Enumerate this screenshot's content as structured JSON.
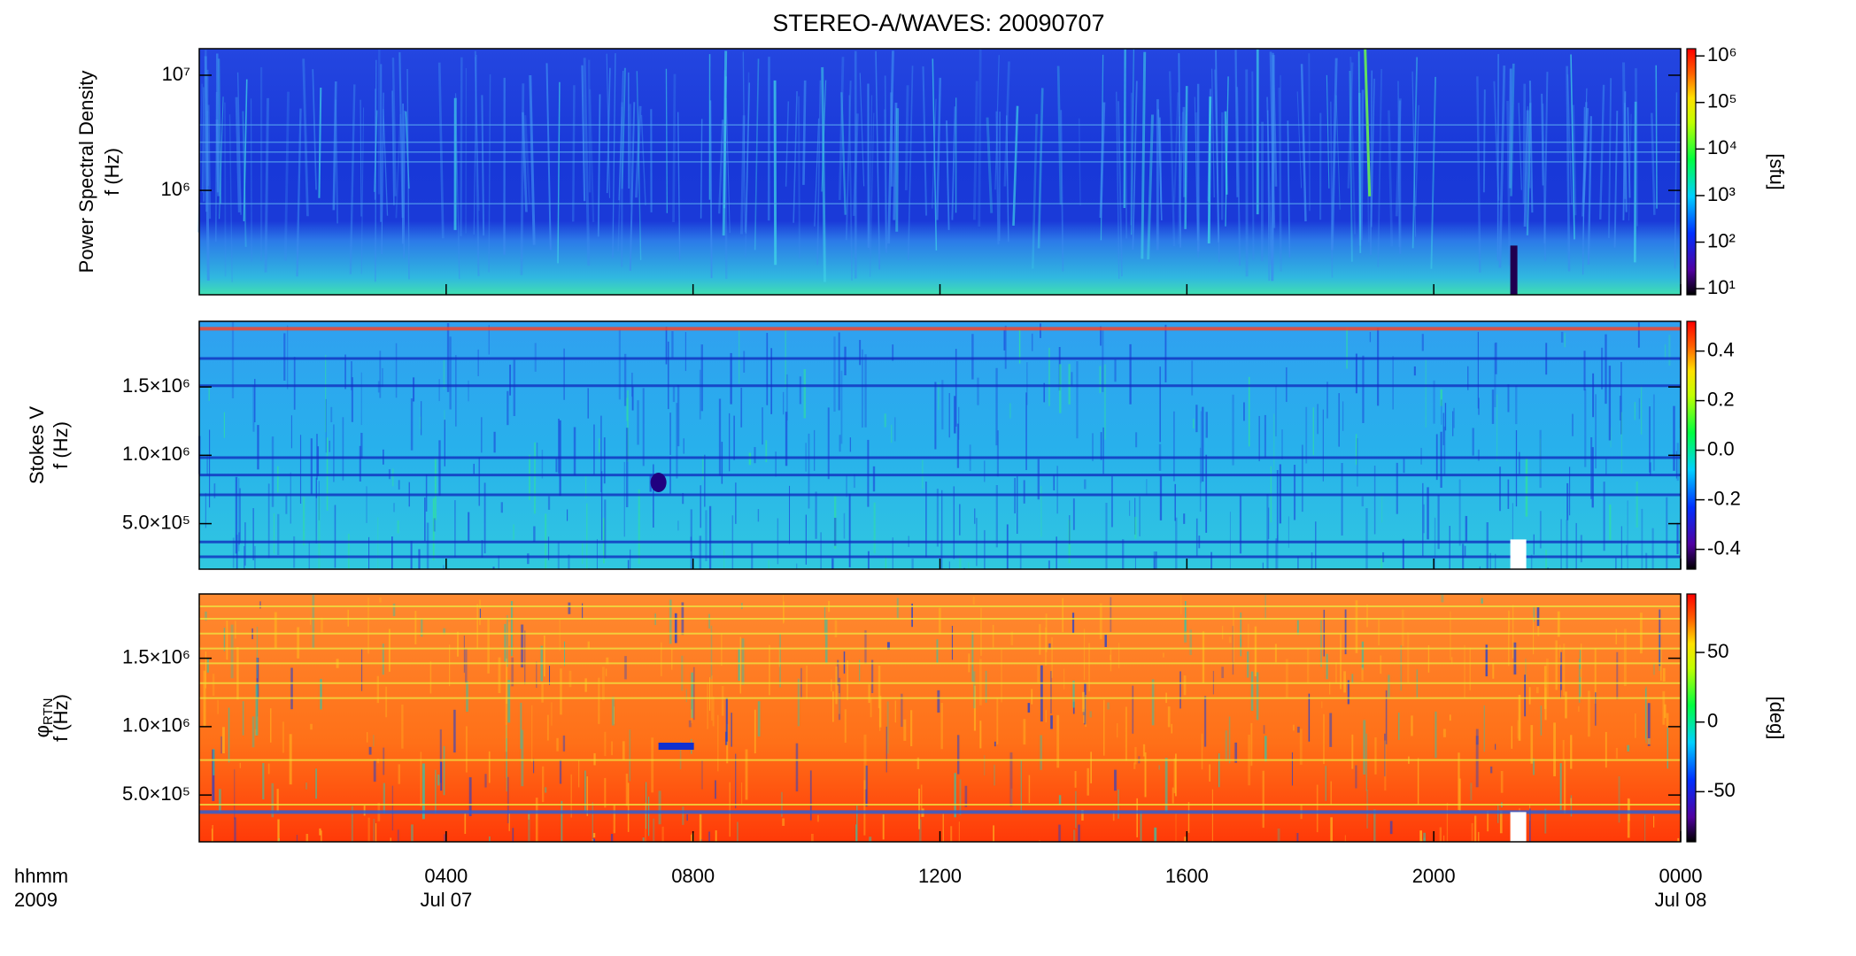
{
  "chart_data": [
    {
      "type": "heatmap",
      "title": "STEREO-A/WAVES: 20090707",
      "ylabel": [
        "Power Spectral Density",
        "f (Hz)"
      ],
      "ylog": true,
      "ylim": [
        124000,
        17000000
      ],
      "yticks": [
        {
          "value": 1000000,
          "label": "10⁶"
        },
        {
          "value": 10000000,
          "label": "10⁷"
        }
      ],
      "xlim": [
        0,
        24
      ],
      "colorbar": {
        "label": "[sfu]",
        "log": true,
        "lim": [
          7.4,
          1430000
        ],
        "ticks": [
          {
            "value": 10,
            "label": "10¹"
          },
          {
            "value": 100,
            "label": "10²"
          },
          {
            "value": 1000,
            "label": "10³"
          },
          {
            "value": 10000,
            "label": "10⁴"
          },
          {
            "value": 100000,
            "label": "10⁵"
          },
          {
            "value": 1000000,
            "label": "10⁶"
          }
        ]
      }
    },
    {
      "type": "heatmap",
      "ylabel": [
        "Stokes V",
        "f (Hz)"
      ],
      "ylog": false,
      "ylim": [
        167000,
        1980000
      ],
      "yticks": [
        {
          "value": 500000,
          "label": "5.0×10⁵"
        },
        {
          "value": 1000000,
          "label": "1.0×10⁶"
        },
        {
          "value": 1500000,
          "label": "1.5×10⁶"
        }
      ],
      "xlim": [
        0,
        24
      ],
      "colorbar": {
        "log": false,
        "lim": [
          -0.48,
          0.52
        ],
        "ticks": [
          -0.4,
          -0.2,
          {
            "value": 0,
            "label": "0.0"
          },
          0.2,
          0.4
        ]
      }
    },
    {
      "type": "heatmap",
      "ylabel_symbol": "φ",
      "ylabel_subscript": "RTN",
      "ylabel": [
        "f (Hz)"
      ],
      "ylog": false,
      "ylim": [
        158000,
        1970000
      ],
      "yticks": [
        {
          "value": 500000,
          "label": "5.0×10⁵"
        },
        {
          "value": 1000000,
          "label": "1.0×10⁶"
        },
        {
          "value": 1500000,
          "label": "1.5×10⁶"
        }
      ],
      "xlim": [
        0,
        24
      ],
      "xticks": [
        {
          "value": 4,
          "label": "0400"
        },
        {
          "value": 8,
          "label": "0800"
        },
        {
          "value": 12,
          "label": "1200"
        },
        {
          "value": 16,
          "label": "1600"
        },
        {
          "value": 20,
          "label": "2000"
        },
        {
          "value": 24,
          "label": "0000"
        }
      ],
      "xtick_dates": [
        {
          "value": 4,
          "label": "Jul 07"
        },
        {
          "value": 24,
          "label": "Jul 08"
        }
      ],
      "xlabel": [
        "hhmm",
        "2009"
      ],
      "colorbar": {
        "label": "[deg]",
        "log": false,
        "lim": [
          -86,
          92
        ],
        "ticks": [
          -50,
          0,
          50
        ]
      }
    }
  ]
}
